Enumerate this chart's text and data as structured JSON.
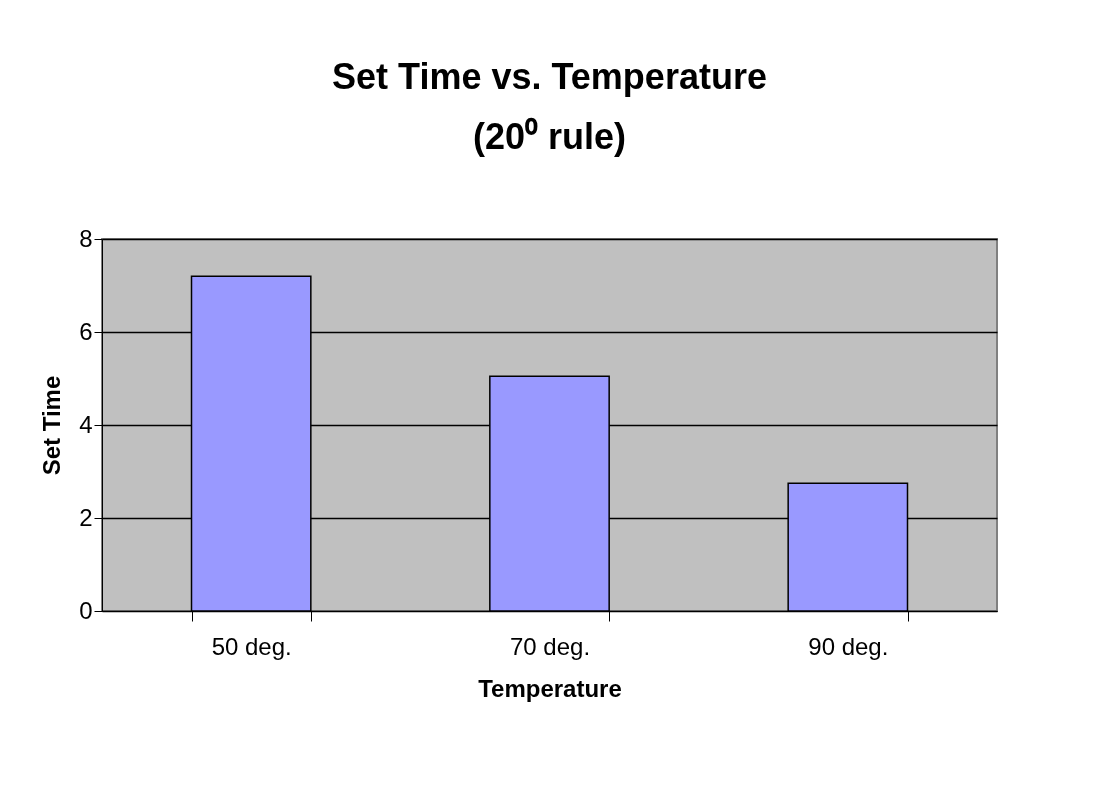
{
  "chart_data": {
    "type": "bar",
    "title": [
      "Set Time vs. Temperature",
      "(20⁰ rule)"
    ],
    "xlabel": "Temperature",
    "ylabel": "Set Time",
    "categories": [
      "50 deg.",
      "70 deg.",
      "90 deg."
    ],
    "values": [
      7.2,
      5.05,
      2.75
    ],
    "color": "#9999ff",
    "ylim": [
      0,
      8
    ],
    "yticks": [
      0,
      2,
      4,
      6,
      8
    ],
    "grid": "y"
  }
}
